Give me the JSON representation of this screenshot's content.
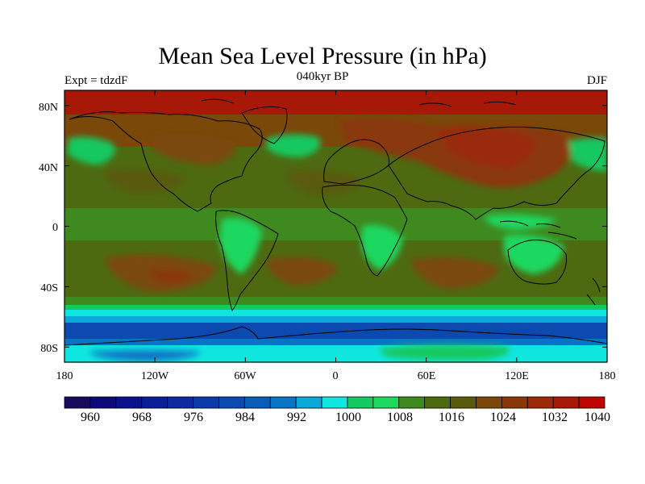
{
  "title": "Mean Sea Level Pressure (in hPa)",
  "experiment_label": "Expt = tdzdF",
  "period_label": "040kyr BP",
  "season_label": "DJF",
  "map": {
    "lon_range": [
      -180,
      180
    ],
    "lat_range": [
      -90,
      90
    ],
    "projection": "cylindrical equidistant",
    "x_ticks": [
      {
        "value": -180,
        "label": "180"
      },
      {
        "value": -120,
        "label": "120W"
      },
      {
        "value": -60,
        "label": "60W"
      },
      {
        "value": 0,
        "label": "0"
      },
      {
        "value": 60,
        "label": "60E"
      },
      {
        "value": 120,
        "label": "120E"
      },
      {
        "value": 180,
        "label": "180"
      }
    ],
    "y_ticks": [
      {
        "value": 80,
        "label": "80N"
      },
      {
        "value": 40,
        "label": "40N"
      },
      {
        "value": 0,
        "label": "0"
      },
      {
        "value": -40,
        "label": "40S"
      },
      {
        "value": -80,
        "label": "80S"
      }
    ]
  },
  "colorbar": {
    "levels": [
      960,
      964,
      968,
      972,
      976,
      980,
      984,
      988,
      992,
      996,
      1000,
      1004,
      1008,
      1012,
      1016,
      1020,
      1024,
      1028,
      1032,
      1036,
      1040
    ],
    "labeled": [
      "960",
      "968",
      "976",
      "984",
      "992",
      "1000",
      "1008",
      "1016",
      "1024",
      "1032",
      "1040"
    ],
    "colors": [
      "#1a0a5e",
      "#0c0a78",
      "#0a128c",
      "#0a1e98",
      "#0d2aa0",
      "#0d3aaa",
      "#0c4ab0",
      "#0b5cb8",
      "#0a74c4",
      "#0aa8d6",
      "#10e6e0",
      "#16c860",
      "#1ed860",
      "#3f8a1e",
      "#4d6a10",
      "#5a5a0c",
      "#7a4808",
      "#8a3808",
      "#9a2a08",
      "#a81808",
      "#c00404"
    ]
  },
  "chart_data": {
    "type": "heatmap",
    "title": "Mean Sea Level Pressure (in hPa)",
    "variable": "mean sea level pressure",
    "units": "hPa",
    "experiment": "tdzdF",
    "period": "040kyr BP",
    "season": "DJF",
    "contour_interval": 4,
    "value_range": [
      960,
      1040
    ],
    "features": [
      {
        "name": "Siberian high",
        "approx_hPa": 1036,
        "lat": 55,
        "lon": 100
      },
      {
        "name": "North Pacific low",
        "approx_hPa": 1008,
        "lat": 50,
        "lon": -165
      },
      {
        "name": "Icelandic low",
        "approx_hPa": 1008,
        "lat": 58,
        "lon": -25
      },
      {
        "name": "Arctic high",
        "approx_hPa": 1036,
        "lat": 85,
        "lon": 0
      },
      {
        "name": "South Pacific subtropical high",
        "approx_hPa": 1024,
        "lat": -32,
        "lon": -110
      },
      {
        "name": "South Atlantic subtropical high",
        "approx_hPa": 1022,
        "lat": -32,
        "lon": -15
      },
      {
        "name": "South Indian subtropical high",
        "approx_hPa": 1022,
        "lat": -32,
        "lon": 65
      },
      {
        "name": "Southern Ocean circumpolar trough",
        "approx_hPa": 984,
        "lat": -65,
        "lon": 0
      },
      {
        "name": "Antarctic interior",
        "approx_hPa": 1000,
        "lat": -85,
        "lon": 0
      }
    ]
  }
}
